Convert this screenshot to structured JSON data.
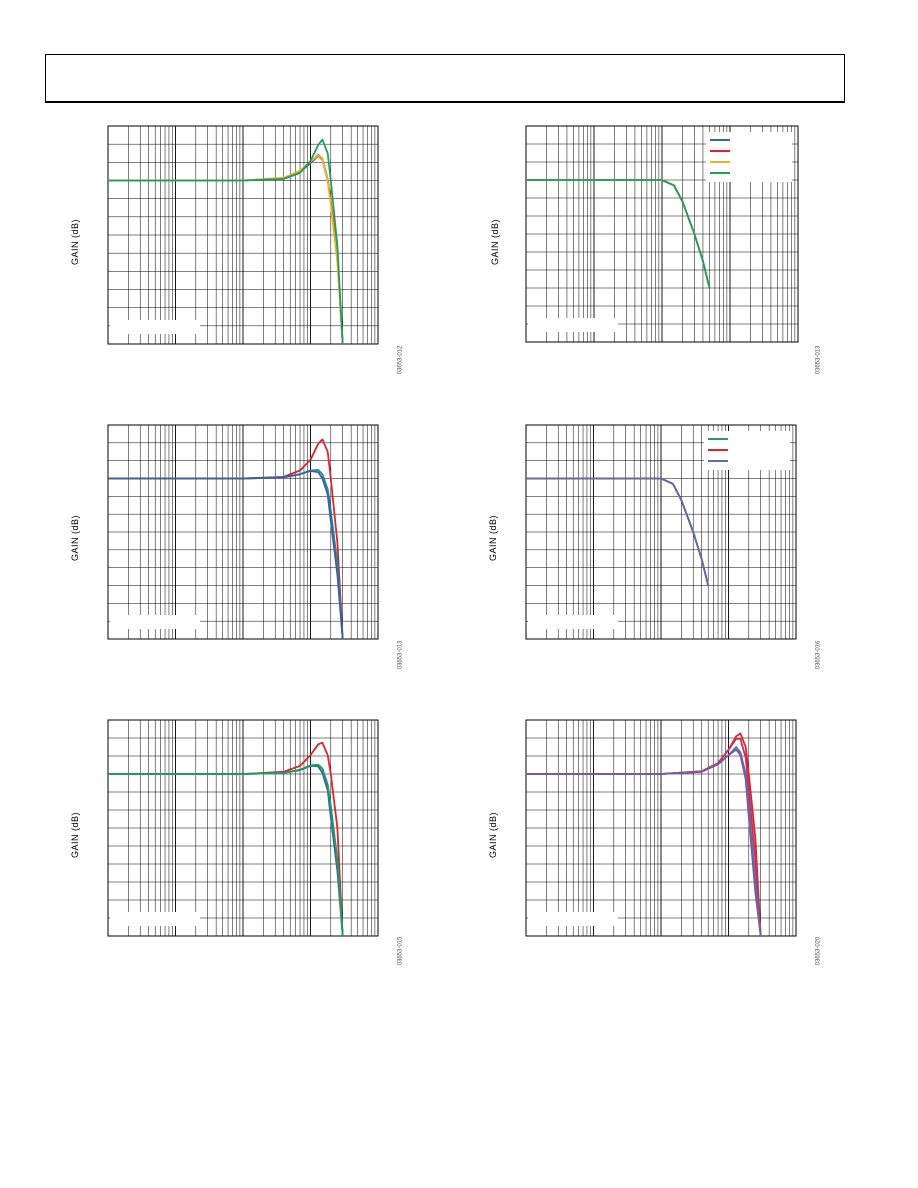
{
  "page": {
    "header": ""
  },
  "chart_data": [
    {
      "type": "line",
      "ylabel": "GAIN (dB)",
      "figure_id": "03653-012",
      "log_x": true,
      "grid": true,
      "series": [
        {
          "color": "#2e6e9e",
          "x": [
            1,
            100,
            400,
            700,
            1000,
            1300,
            1500,
            1800,
            2000,
            2500,
            3000
          ],
          "y": [
            0,
            0,
            0.3,
            1.5,
            3.2,
            4.5,
            3.8,
            0,
            -4,
            -14,
            -30
          ]
        },
        {
          "color": "#d9262f",
          "x": [
            1,
            100,
            400,
            700,
            1000,
            1300,
            1500,
            1800,
            2000,
            2500,
            3000
          ],
          "y": [
            0,
            0,
            0.4,
            1.6,
            3.4,
            4.7,
            4.0,
            0.2,
            -4,
            -14,
            -30
          ]
        },
        {
          "color": "#f0b323",
          "x": [
            1,
            100,
            400,
            700,
            1000,
            1300,
            1500,
            1800,
            2000,
            2500,
            3000
          ],
          "y": [
            0,
            0,
            0.5,
            1.8,
            3.5,
            4.6,
            3.9,
            0,
            -4.5,
            -15,
            -30
          ]
        },
        {
          "color": "#1fa060",
          "x": [
            1,
            100,
            400,
            700,
            1000,
            1300,
            1500,
            1800,
            2000,
            2500,
            3000
          ],
          "y": [
            0,
            0,
            0.3,
            1.4,
            3.6,
            6.5,
            7.5,
            5.0,
            0,
            -12,
            -30
          ]
        }
      ]
    },
    {
      "type": "line",
      "ylabel": "GAIN (dB)",
      "figure_id": "03653-013",
      "log_x": true,
      "grid": true,
      "legend": "top-right",
      "series": [
        {
          "color": "#2e6e9e",
          "x": [
            1,
            50,
            100,
            150,
            200,
            300,
            400,
            500
          ],
          "y": [
            0,
            0,
            0,
            -1,
            -4,
            -10,
            -15,
            -20
          ]
        },
        {
          "color": "#d9262f",
          "x": [
            1,
            50,
            100,
            150,
            200,
            300,
            400,
            500
          ],
          "y": [
            0,
            0,
            0,
            -1,
            -4,
            -10,
            -15,
            -20
          ]
        },
        {
          "color": "#f0b323",
          "x": [
            1,
            50,
            100,
            150,
            200,
            300,
            400,
            500
          ],
          "y": [
            0,
            0,
            0,
            -1,
            -4,
            -10,
            -15,
            -20
          ]
        },
        {
          "color": "#1fa060",
          "x": [
            1,
            50,
            100,
            150,
            200,
            300,
            400,
            500
          ],
          "y": [
            0,
            0,
            0,
            -1,
            -4,
            -10,
            -15,
            -20
          ]
        }
      ]
    },
    {
      "type": "line",
      "ylabel": "GAIN (dB)",
      "figure_id": "03653-013",
      "log_x": true,
      "grid": true,
      "series": [
        {
          "color": "#d9262f",
          "x": [
            1,
            100,
            400,
            700,
            1000,
            1300,
            1500,
            1800,
            2000,
            2500,
            3000
          ],
          "y": [
            0,
            0,
            0.3,
            1.5,
            3.5,
            6.5,
            7.3,
            5.0,
            0,
            -12,
            -30
          ]
        },
        {
          "color": "#1f8f8f",
          "x": [
            1,
            100,
            400,
            700,
            1000,
            1300,
            1500,
            1800,
            2000,
            2500,
            3000
          ],
          "y": [
            0,
            0,
            0.2,
            0.8,
            1.5,
            1.6,
            0.8,
            -2,
            -6,
            -16,
            -30
          ]
        },
        {
          "color": "#3a5ea8",
          "x": [
            1,
            100,
            400,
            700,
            1000,
            1300,
            1500,
            1800,
            2000,
            2500,
            3000
          ],
          "y": [
            0,
            0,
            0.2,
            0.8,
            1.4,
            1.2,
            0,
            -3,
            -8,
            -18,
            -30
          ]
        }
      ]
    },
    {
      "type": "line",
      "ylabel": "GAIN (dB)",
      "figure_id": "03653-016",
      "log_x": true,
      "grid": true,
      "legend": "top-right",
      "series": [
        {
          "color": "#1fa060",
          "x": [
            1,
            50,
            100,
            150,
            200,
            300,
            400,
            500
          ],
          "y": [
            0,
            0,
            0,
            -1,
            -4,
            -10,
            -15,
            -20
          ]
        },
        {
          "color": "#d9262f",
          "x": [
            1,
            50,
            100,
            150,
            200,
            300,
            400,
            500
          ],
          "y": [
            0,
            0,
            0,
            -1,
            -4,
            -10,
            -15,
            -20
          ]
        },
        {
          "color": "#5b6fa8",
          "x": [
            1,
            50,
            100,
            150,
            200,
            300,
            400,
            500
          ],
          "y": [
            0,
            0,
            0,
            -1,
            -4,
            -10,
            -15,
            -20
          ]
        }
      ]
    },
    {
      "type": "line",
      "ylabel": "GAIN (dB)",
      "figure_id": "03653-015",
      "log_x": true,
      "grid": true,
      "series": [
        {
          "color": "#d9262f",
          "x": [
            1,
            100,
            400,
            700,
            1000,
            1300,
            1500,
            1800,
            2000,
            2500,
            3000
          ],
          "y": [
            0,
            0,
            0.4,
            1.5,
            3.5,
            5.5,
            5.8,
            3.5,
            0,
            -10,
            -30
          ]
        },
        {
          "color": "#1f8f8f",
          "x": [
            1,
            100,
            400,
            700,
            1000,
            1300,
            1500,
            1800,
            2000,
            2500,
            3000
          ],
          "y": [
            0,
            0,
            0.2,
            0.8,
            1.6,
            1.7,
            1.0,
            -2,
            -6,
            -16,
            -30
          ]
        },
        {
          "color": "#3a5ea8",
          "x": [
            1,
            100,
            400,
            700,
            1000,
            1300,
            1500,
            1800,
            2000,
            2500,
            3000
          ],
          "y": [
            0,
            0,
            0.2,
            0.7,
            1.5,
            1.4,
            0.2,
            -3,
            -8,
            -18,
            -30
          ]
        },
        {
          "color": "#1fa060",
          "x": [
            1,
            100,
            400,
            700,
            1000,
            1300,
            1500,
            1800,
            2000,
            2500,
            3000
          ],
          "y": [
            0,
            0,
            0.2,
            0.8,
            1.6,
            1.7,
            1.0,
            -2,
            -6,
            -16,
            -30
          ]
        }
      ]
    },
    {
      "type": "line",
      "ylabel": "GAIN (dB)",
      "figure_id": "03653-020",
      "log_x": true,
      "grid": true,
      "series": [
        {
          "color": "#d9262f",
          "x": [
            1,
            100,
            400,
            700,
            1000,
            1300,
            1500,
            1800,
            2000,
            2500,
            3000
          ],
          "y": [
            0,
            0,
            0.5,
            2.0,
            4.5,
            7.0,
            7.5,
            5.0,
            0,
            -12,
            -30
          ]
        },
        {
          "color": "#c8325a",
          "x": [
            1,
            100,
            400,
            700,
            1000,
            1300,
            1500,
            1800,
            2000,
            2500,
            3000
          ],
          "y": [
            0,
            0,
            0.5,
            2.0,
            4.5,
            6.5,
            6.5,
            3.0,
            -3,
            -16,
            -30
          ]
        },
        {
          "color": "#5b6fa8",
          "x": [
            1,
            100,
            400,
            700,
            1000,
            1300,
            1500,
            1800,
            2000,
            2500,
            3000
          ],
          "y": [
            0,
            0,
            0.4,
            1.8,
            3.5,
            5.0,
            4.0,
            0,
            -6,
            -20,
            -30
          ]
        },
        {
          "color": "#7a5a9a",
          "x": [
            1,
            100,
            400,
            700,
            1000,
            1300,
            1500,
            1800,
            2000,
            2500,
            3000
          ],
          "y": [
            0,
            0,
            0.4,
            1.8,
            3.5,
            4.5,
            3.5,
            -1,
            -8,
            -22,
            -30
          ]
        }
      ]
    }
  ]
}
